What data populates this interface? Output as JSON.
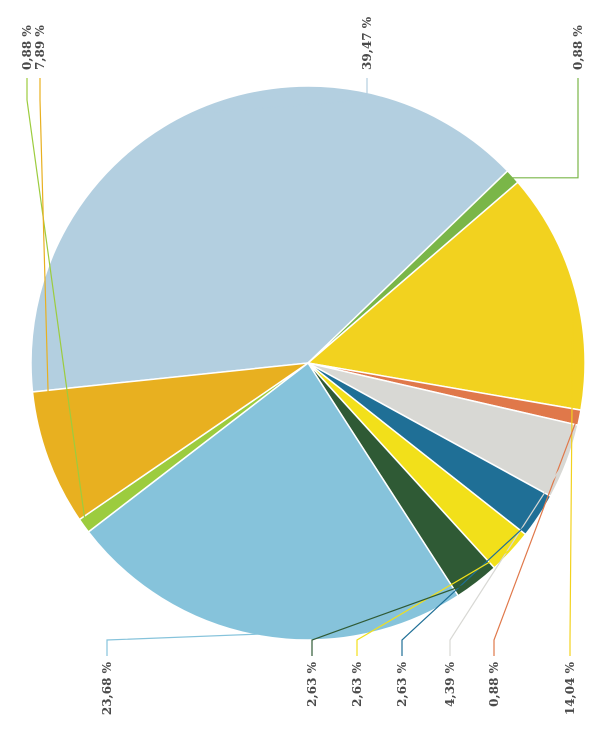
{
  "chart_data": {
    "type": "pie",
    "title": "",
    "slices": [
      {
        "label": "39,47 %",
        "value": 39.47,
        "color": "#b3cfe0"
      },
      {
        "label": "0,88 %",
        "value": 0.88,
        "color": "#7ab648"
      },
      {
        "label": "14,04 %",
        "value": 14.04,
        "color": "#f2d21f"
      },
      {
        "label": "0,88 %",
        "value": 0.88,
        "color": "#e0784a"
      },
      {
        "label": "4,39 %",
        "value": 4.39,
        "color": "#d8d8d4"
      },
      {
        "label": "2,63 %",
        "value": 2.63,
        "color": "#1f6f96"
      },
      {
        "label": "2,63 %",
        "value": 2.63,
        "color": "#f2e01a"
      },
      {
        "label": "2,63 %",
        "value": 2.63,
        "color": "#2f5a35"
      },
      {
        "label": "23,68 %",
        "value": 23.68,
        "color": "#86c3db"
      },
      {
        "label": "0,88 %",
        "value": 0.88,
        "color": "#9ccc3e"
      },
      {
        "label": "7,89 %",
        "value": 7.89,
        "color": "#e8b020"
      }
    ],
    "legend": "none",
    "label_orientation": "rotated -90 degrees"
  }
}
